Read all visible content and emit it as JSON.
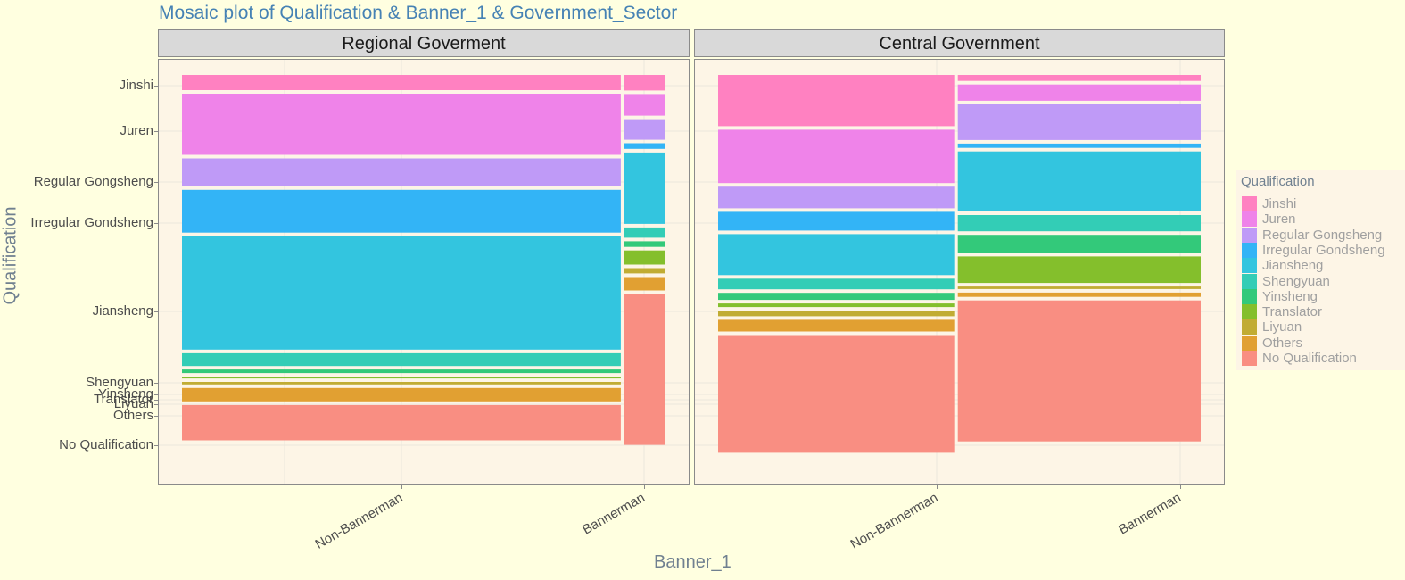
{
  "title": "Mosaic plot of Qualification & Banner_1 & Government_Sector",
  "chart_data": {
    "type": "mosaic",
    "title": "Mosaic plot of Qualification & Banner_1 & Government_Sector",
    "xlabel": "Banner_1",
    "ylabel": "Qualification",
    "facets": [
      "Regional Goverment",
      "Central Government"
    ],
    "x_categories": [
      "Non-Bannerman",
      "Bannerman"
    ],
    "y_tick_labels": [
      "Jinshi",
      "Juren",
      "Regular Gongsheng",
      "Irregular Gondsheng",
      "Jiansheng",
      "Shengyuan",
      "Yinsheng",
      "Translator",
      "Liyuan",
      "Others",
      "No Qualification"
    ],
    "qualifications": [
      "Jinshi",
      "Juren",
      "Regular Gongsheng",
      "Irregular Gondsheng",
      "Jiansheng",
      "Shengyuan",
      "Yinsheng",
      "Translator",
      "Liyuan",
      "Others",
      "No Qualification"
    ],
    "colors": [
      "#FF81C1",
      "#EF83E9",
      "#BF9AF7",
      "#33B4F6",
      "#33C5DF",
      "#33CDB6",
      "#33C97A",
      "#84BF2C",
      "#C1AC33",
      "#E1A032",
      "#F98E82"
    ],
    "column_width_share": {
      "Regional Goverment": [
        0.916,
        0.084
      ],
      "Central Government": [
        0.493,
        0.507
      ]
    },
    "proportions": {
      "Regional Goverment": {
        "Non-Bannerman": [
          0.043,
          0.173,
          0.079,
          0.121,
          0.321,
          0.036,
          0.01,
          0.005,
          0.007,
          0.038,
          0.1
        ],
        "Bannerman": [
          0.044,
          0.061,
          0.058,
          0.016,
          0.202,
          0.029,
          0.016,
          0.04,
          0.015,
          0.038,
          0.427
        ]
      },
      "Central Government": {
        "Non-Bannerman": [
          0.145,
          0.151,
          0.061,
          0.053,
          0.116,
          0.03,
          0.02,
          0.01,
          0.016,
          0.033,
          0.333
        ],
        "Bannerman": [
          0.017,
          0.046,
          0.101,
          0.012,
          0.17,
          0.046,
          0.051,
          0.075,
          0.007,
          0.012,
          0.399
        ]
      }
    },
    "legend": {
      "title": "Qualification",
      "entries": [
        "Jinshi",
        "Juren",
        "Regular Gongsheng",
        "Irregular Gondsheng",
        "Jiansheng",
        "Shengyuan",
        "Yinsheng",
        "Translator",
        "Liyuan",
        "Others",
        "No Qualification"
      ],
      "position": "right"
    },
    "grid": true
  },
  "colors": {
    "background": "#FFFFE0",
    "panel": "#FDF5E6",
    "strip": "#D9D9D9",
    "title": "#4682B4"
  }
}
